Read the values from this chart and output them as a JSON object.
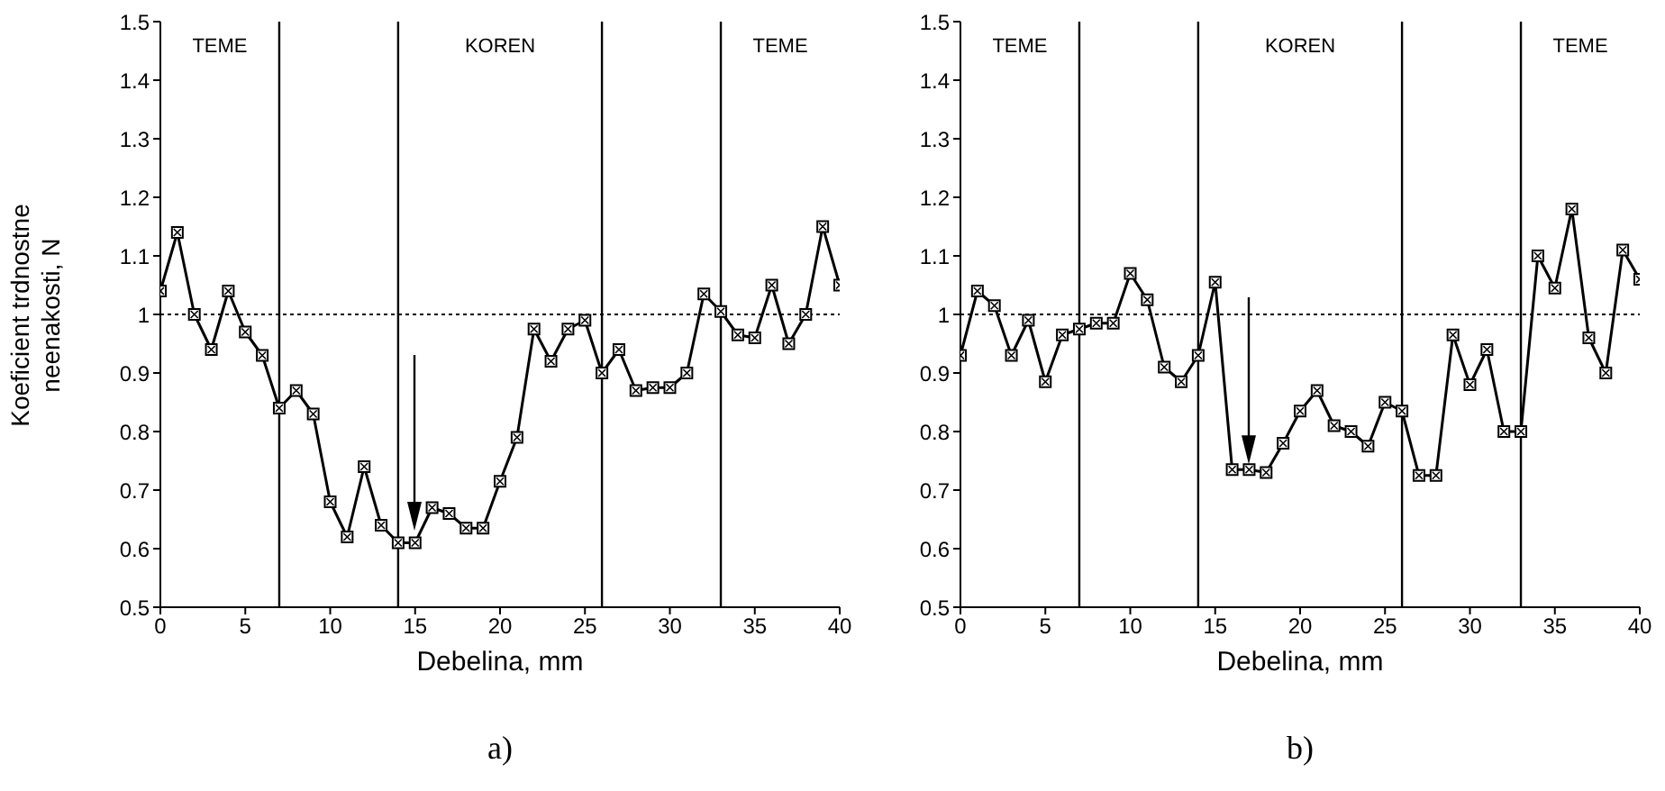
{
  "chart_data": [
    {
      "type": "line",
      "xlabel": "Debelina,  mm",
      "ylabel": "Koeficient trdnostne neenakosti, N",
      "marker": "square",
      "line_style": "solid",
      "color": "#000000",
      "x": [
        0,
        1,
        2,
        3,
        4,
        5,
        6,
        7,
        8,
        9,
        10,
        11,
        12,
        13,
        14,
        15,
        16,
        17,
        18,
        19,
        20,
        21,
        22,
        23,
        24,
        25,
        26,
        27,
        28,
        29,
        30,
        31,
        32,
        33,
        34,
        35,
        36,
        37,
        38,
        39,
        40
      ],
      "values": [
        1.04,
        1.14,
        1.0,
        0.94,
        1.04,
        0.97,
        0.93,
        0.84,
        0.87,
        0.83,
        0.68,
        0.62,
        0.74,
        0.64,
        0.61,
        0.61,
        0.67,
        0.66,
        0.635,
        0.635,
        0.715,
        0.79,
        0.975,
        0.92,
        0.975,
        0.99,
        0.9,
        0.94,
        0.87,
        0.875,
        0.875,
        0.9,
        1.035,
        1.005,
        0.965,
        0.96,
        1.05,
        0.95,
        1.0,
        1.15,
        1.05
      ],
      "xlim": [
        0,
        40
      ],
      "xticks": [
        0,
        5,
        10,
        15,
        20,
        25,
        30,
        35,
        40
      ],
      "ylim": [
        0.5,
        1.5
      ],
      "yticks": [
        0.5,
        0.6,
        0.7,
        0.8,
        0.9,
        1,
        1.1,
        1.2,
        1.3,
        1.4,
        1.5
      ],
      "ref_lines": [
        {
          "axis": "y",
          "value": 1,
          "line_style": "dotted"
        },
        {
          "axis": "x",
          "value": 7,
          "line_style": "solid"
        },
        {
          "axis": "x",
          "value": 14,
          "line_style": "solid"
        },
        {
          "axis": "x",
          "value": 26,
          "line_style": "solid"
        },
        {
          "axis": "x",
          "value": 33,
          "line_style": "solid"
        }
      ],
      "annotations": [
        "TEME",
        "KOREN",
        "TEME",
        "a)"
      ],
      "legend": false,
      "grid": false
    },
    {
      "type": "line",
      "xlabel": "Debelina,  mm",
      "marker": "square",
      "line_style": "solid",
      "color": "#000000",
      "x": [
        0,
        1,
        2,
        3,
        4,
        5,
        6,
        7,
        8,
        9,
        10,
        11,
        12,
        13,
        14,
        15,
        16,
        17,
        18,
        19,
        20,
        21,
        22,
        23,
        24,
        25,
        26,
        27,
        28,
        29,
        30,
        31,
        32,
        33,
        34,
        35,
        36,
        37,
        38,
        39,
        40
      ],
      "values": [
        0.93,
        1.04,
        1.015,
        0.93,
        0.99,
        0.885,
        0.965,
        0.975,
        0.985,
        0.985,
        1.07,
        1.025,
        0.91,
        0.885,
        0.93,
        1.055,
        0.735,
        0.735,
        0.73,
        0.78,
        0.835,
        0.87,
        0.81,
        0.8,
        0.775,
        0.85,
        0.835,
        0.725,
        0.725,
        0.965,
        0.88,
        0.94,
        0.8,
        0.8,
        1.1,
        1.045,
        1.18,
        0.96,
        0.9,
        1.11,
        1.06
      ],
      "xlim": [
        0,
        40
      ],
      "xticks": [
        0,
        5,
        10,
        15,
        20,
        25,
        30,
        35,
        40
      ],
      "ylim": [
        0.5,
        1.5
      ],
      "yticks": [
        0.5,
        0.6,
        0.7,
        0.8,
        0.9,
        1,
        1.1,
        1.2,
        1.3,
        1.4,
        1.5
      ],
      "ref_lines": [
        {
          "axis": "y",
          "value": 1,
          "line_style": "dotted"
        },
        {
          "axis": "x",
          "value": 7,
          "line_style": "solid"
        },
        {
          "axis": "x",
          "value": 14,
          "line_style": "solid"
        },
        {
          "axis": "x",
          "value": 26,
          "line_style": "solid"
        },
        {
          "axis": "x",
          "value": 33,
          "line_style": "solid"
        }
      ],
      "annotations": [
        "TEME",
        "KOREN",
        "TEME",
        "b)"
      ],
      "legend": false,
      "grid": false
    }
  ]
}
